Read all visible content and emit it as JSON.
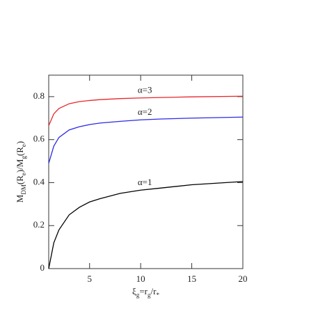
{
  "chart_data": {
    "type": "line",
    "x_label": [
      "ξ",
      "g",
      "=r",
      "g",
      "/r",
      "*"
    ],
    "y_label": [
      "M",
      "DM",
      "(R",
      "e",
      ")/M",
      "g",
      "(R",
      "e",
      ")"
    ],
    "x": [
      1,
      1.5,
      2,
      3,
      4,
      5,
      6,
      8,
      10,
      12,
      15,
      20
    ],
    "series": [
      {
        "name": "α=3",
        "color": "#e8262a",
        "values": [
          0.665,
          0.72,
          0.745,
          0.767,
          0.777,
          0.782,
          0.786,
          0.791,
          0.794,
          0.796,
          0.799,
          0.802
        ]
      },
      {
        "name": "α=2",
        "color": "#2a2ae8",
        "values": [
          0.49,
          0.57,
          0.61,
          0.645,
          0.66,
          0.67,
          0.677,
          0.685,
          0.692,
          0.696,
          0.7,
          0.705
        ]
      },
      {
        "name": "α=1",
        "color": "#000000",
        "values": [
          0,
          0.12,
          0.18,
          0.25,
          0.285,
          0.31,
          0.325,
          0.35,
          0.365,
          0.375,
          0.39,
          0.405
        ]
      }
    ],
    "xlim": [
      1,
      20
    ],
    "xticks": [
      5,
      10,
      15,
      20
    ],
    "ylim": [
      0,
      0.9
    ],
    "yticks": [
      0,
      0.2,
      0.4,
      0.6,
      0.8
    ]
  }
}
